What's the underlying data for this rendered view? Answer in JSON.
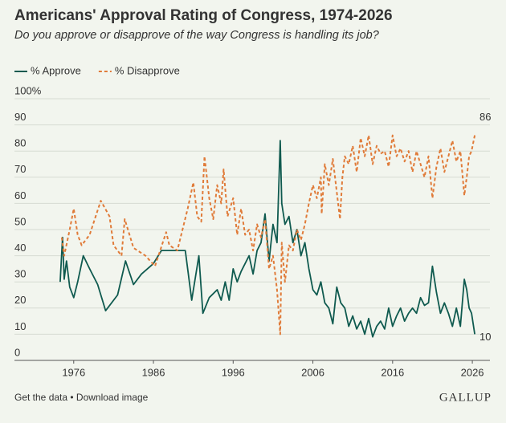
{
  "chart_data": {
    "type": "line",
    "title": "Americans' Approval Rating of Congress, 1974-2026",
    "subtitle": "Do you approve or disapprove of the way Congress is handling its job?",
    "footer": "Get the data • Download image",
    "brand": "GALLUP",
    "xlim": [
      1973,
      2027
    ],
    "xticks": [
      1976,
      1986,
      1996,
      2006,
      2016,
      2026
    ],
    "ylim": [
      0,
      100
    ],
    "yticks": [
      0,
      10,
      20,
      30,
      40,
      50,
      60,
      70,
      80,
      {
        "value": 100,
        "label": "100%"
      },
      90
    ],
    "grid": true,
    "legend": "top-left",
    "series": [
      {
        "name": "% Approve",
        "color": "#0f5a4f",
        "dash": false,
        "x": [
          1974.3,
          1974.6,
          1974.8,
          1975.1,
          1975.5,
          1976,
          1976.5,
          1977.2,
          1978,
          1979,
          1980,
          1981.5,
          1982.5,
          1983.5,
          1984.5,
          1986,
          1987,
          1990,
          1990.8,
          1991.7,
          1992.2,
          1993,
          1994,
          1994.5,
          1995,
          1995.5,
          1996,
          1996.5,
          1997,
          1998,
          1998.5,
          1999,
          1999.5,
          2000,
          2000.5,
          2001,
          2001.5,
          2001.9,
          2002.1,
          2002.5,
          2003,
          2003.5,
          2004,
          2004.5,
          2005,
          2005.5,
          2006,
          2006.5,
          2007,
          2007.5,
          2008,
          2008.5,
          2009,
          2009.5,
          2010,
          2010.5,
          2011,
          2011.5,
          2012,
          2012.5,
          2013,
          2013.5,
          2014,
          2014.5,
          2015,
          2015.5,
          2016,
          2016.5,
          2017,
          2017.5,
          2018,
          2018.5,
          2019,
          2019.5,
          2020,
          2020.5,
          2021,
          2021.5,
          2022,
          2022.5,
          2023,
          2023.5,
          2024,
          2024.5,
          2025,
          2025.3,
          2025.6,
          2025.9,
          2026.3
        ],
        "values": [
          30,
          47,
          31,
          38,
          28,
          24,
          30,
          40,
          35,
          29,
          19,
          25,
          38,
          29,
          33,
          37,
          42,
          42,
          23,
          40,
          18,
          24,
          27,
          23,
          30,
          23,
          35,
          30,
          34,
          40,
          33,
          42,
          45,
          56,
          38,
          52,
          45,
          84,
          60,
          52,
          55,
          45,
          50,
          40,
          45,
          35,
          27,
          25,
          30,
          22,
          20,
          14,
          28,
          22,
          20,
          13,
          17,
          12,
          15,
          10,
          16,
          9,
          13,
          15,
          12,
          20,
          13,
          17,
          20,
          15,
          18,
          20,
          18,
          24,
          21,
          22,
          36,
          26,
          18,
          22,
          18,
          13,
          20,
          13,
          31,
          27,
          20,
          18,
          10
        ]
      },
      {
        "name": "% Disapprove",
        "color": "#e07b39",
        "dash": true,
        "x": [
          1974.5,
          1974.8,
          1975.5,
          1976,
          1976.5,
          1977,
          1978,
          1979.4,
          1980.5,
          1981,
          1982,
          1982.4,
          1983.5,
          1985,
          1986.2,
          1987.6,
          1988,
          1989,
          1990.3,
          1991,
          1991.5,
          1992,
          1992.4,
          1993,
          1993.5,
          1994,
          1994.5,
          1994.8,
          1995.3,
          1996,
          1996.5,
          1997,
          1997.5,
          1998,
          1998.5,
          1999,
          1999.5,
          2000,
          2000.5,
          2001,
          2001.5,
          2001.9,
          2002.1,
          2002.5,
          2003,
          2003.5,
          2004,
          2004.5,
          2005,
          2005.5,
          2006,
          2006.5,
          2007,
          2007.1,
          2007.5,
          2008,
          2008.5,
          2009.4,
          2009.7,
          2010,
          2010.5,
          2011,
          2011.5,
          2012,
          2012.5,
          2013,
          2013.5,
          2014,
          2014.5,
          2015,
          2015.5,
          2016,
          2016.5,
          2017,
          2017.5,
          2018,
          2018.5,
          2019,
          2019.5,
          2020,
          2020.5,
          2021,
          2021.5,
          2022,
          2022.5,
          2023,
          2023.5,
          2024,
          2024.5,
          2025,
          2025.3,
          2025.6,
          2025.9,
          2026.3
        ],
        "values": [
          47,
          40,
          50,
          58,
          48,
          44,
          48,
          61,
          55,
          44,
          40,
          54,
          43,
          40,
          36,
          49,
          44,
          42,
          58,
          68,
          55,
          53,
          78,
          62,
          54,
          67,
          60,
          73,
          55,
          62,
          48,
          58,
          48,
          50,
          42,
          52,
          47,
          54,
          35,
          40,
          27,
          10,
          45,
          30,
          44,
          42,
          50,
          46,
          52,
          60,
          67,
          62,
          70,
          56,
          75,
          67,
          77,
          54,
          70,
          78,
          75,
          82,
          72,
          85,
          78,
          86,
          75,
          82,
          79,
          80,
          74,
          86,
          78,
          81,
          76,
          80,
          72,
          80,
          75,
          70,
          78,
          62,
          74,
          81,
          72,
          78,
          84,
          76,
          80,
          63,
          70,
          78,
          80,
          86
        ]
      }
    ]
  }
}
